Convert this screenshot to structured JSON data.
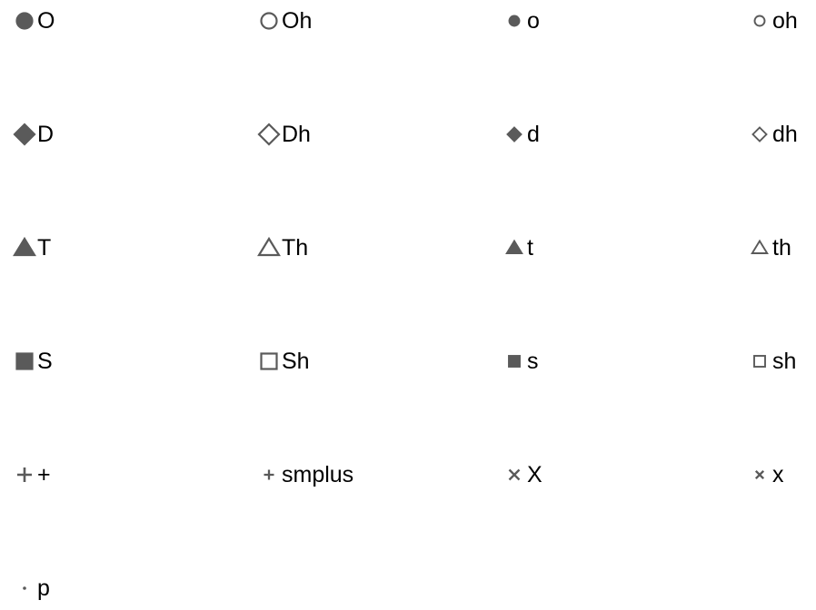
{
  "marker_color": "#5a5a5a",
  "rows": [
    [
      {
        "label": "O",
        "marker": "circle",
        "fill": true,
        "size": "large"
      },
      {
        "label": "Oh",
        "marker": "circle",
        "fill": false,
        "size": "large"
      },
      {
        "label": "o",
        "marker": "circle",
        "fill": true,
        "size": "small"
      },
      {
        "label": "oh",
        "marker": "circle",
        "fill": false,
        "size": "small"
      }
    ],
    [
      {
        "label": "D",
        "marker": "diamond",
        "fill": true,
        "size": "large"
      },
      {
        "label": "Dh",
        "marker": "diamond",
        "fill": false,
        "size": "large"
      },
      {
        "label": "d",
        "marker": "diamond",
        "fill": true,
        "size": "small"
      },
      {
        "label": "dh",
        "marker": "diamond",
        "fill": false,
        "size": "small"
      }
    ],
    [
      {
        "label": "T",
        "marker": "triangle",
        "fill": true,
        "size": "large"
      },
      {
        "label": "Th",
        "marker": "triangle",
        "fill": false,
        "size": "large"
      },
      {
        "label": "t",
        "marker": "triangle",
        "fill": true,
        "size": "small"
      },
      {
        "label": "th",
        "marker": "triangle",
        "fill": false,
        "size": "small"
      }
    ],
    [
      {
        "label": "S",
        "marker": "square",
        "fill": true,
        "size": "large"
      },
      {
        "label": "Sh",
        "marker": "square",
        "fill": false,
        "size": "large"
      },
      {
        "label": "s",
        "marker": "square",
        "fill": true,
        "size": "small"
      },
      {
        "label": "sh",
        "marker": "square",
        "fill": false,
        "size": "small"
      }
    ],
    [
      {
        "label": "+",
        "marker": "plus",
        "fill": true,
        "size": "large"
      },
      {
        "label": "smplus",
        "marker": "plus",
        "fill": true,
        "size": "small"
      },
      {
        "label": "X",
        "marker": "x",
        "fill": true,
        "size": "large"
      },
      {
        "label": "x",
        "marker": "x",
        "fill": true,
        "size": "small"
      }
    ],
    [
      {
        "label": "p",
        "marker": "point",
        "fill": true,
        "size": "small"
      }
    ]
  ]
}
